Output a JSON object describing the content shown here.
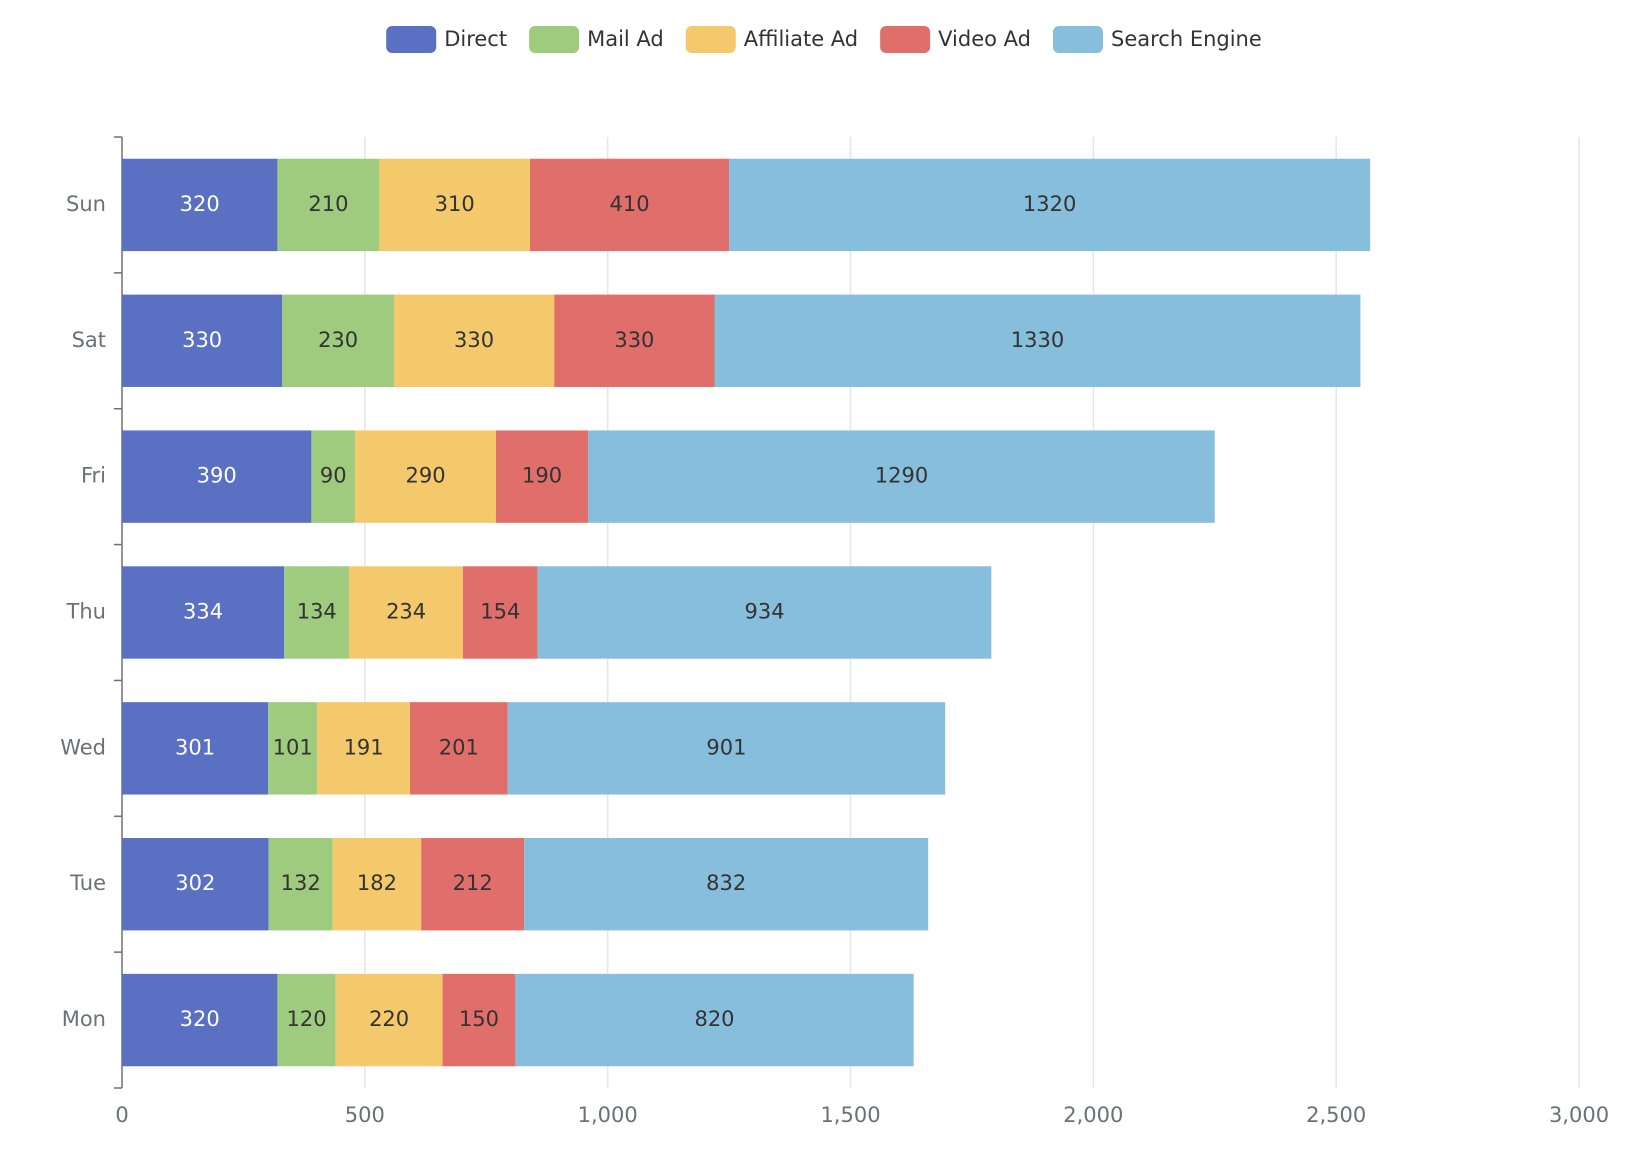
{
  "chart_data": {
    "type": "bar",
    "orientation": "horizontal",
    "stacked": true,
    "categories": [
      "Mon",
      "Tue",
      "Wed",
      "Thu",
      "Fri",
      "Sat",
      "Sun"
    ],
    "series": [
      {
        "name": "Direct",
        "color": "#5a70c2",
        "values": [
          320,
          302,
          301,
          334,
          390,
          330,
          320
        ]
      },
      {
        "name": "Mail Ad",
        "color": "#9ecb7d",
        "values": [
          120,
          132,
          101,
          134,
          90,
          230,
          210
        ]
      },
      {
        "name": "Affiliate Ad",
        "color": "#f3c96b",
        "values": [
          220,
          182,
          191,
          234,
          290,
          330,
          310
        ]
      },
      {
        "name": "Video Ad",
        "color": "#e06e6a",
        "values": [
          150,
          212,
          201,
          154,
          190,
          330,
          410
        ]
      },
      {
        "name": "Search Engine",
        "color": "#86bedc",
        "values": [
          820,
          832,
          901,
          934,
          1290,
          1330,
          1320
        ]
      }
    ],
    "xlim": [
      0,
      3000
    ],
    "xticks": [
      0,
      500,
      {
        "value": 1000,
        "label": "1,000"
      },
      {
        "value": 1500,
        "label": "1,500"
      },
      {
        "value": 2000,
        "label": "2,000"
      },
      {
        "value": 2500,
        "label": "2,500"
      },
      {
        "value": 3000,
        "label": "3,000"
      }
    ],
    "grid": true,
    "legend": "top"
  }
}
